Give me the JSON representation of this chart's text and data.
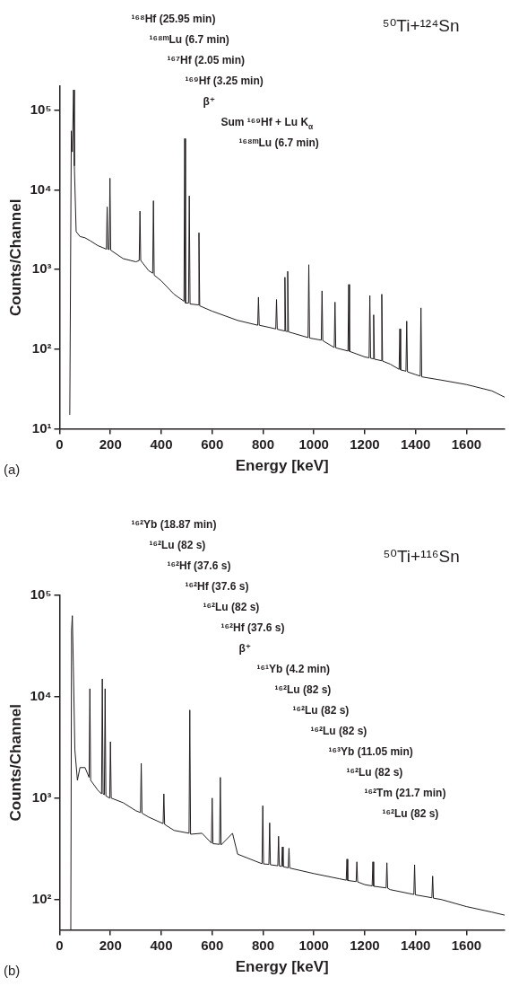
{
  "chart_data": [
    {
      "type": "line",
      "title": "⁵⁰Ti+¹²⁴Sn",
      "xlabel": "Energy [keV]",
      "ylabel": "Counts/Channel",
      "log": "y",
      "grid": false,
      "marker": "none",
      "color": "#231f20",
      "x": [
        40,
        46,
        50,
        55,
        58,
        65,
        80,
        100,
        120,
        150,
        184,
        187,
        190,
        195,
        198,
        201,
        250,
        300,
        313,
        316,
        319,
        350,
        366,
        369,
        372,
        400,
        450,
        489,
        492,
        495,
        507,
        510,
        513,
        545,
        548,
        551,
        600,
        700,
        779,
        782,
        785,
        850,
        853,
        856,
        883,
        886,
        889,
        894,
        897,
        900,
        977,
        980,
        983,
        1029,
        1032,
        1035,
        1080,
        1083,
        1086,
        1134,
        1137,
        1140,
        1200,
        1217,
        1220,
        1223,
        1232,
        1235,
        1238,
        1264,
        1267,
        1270,
        1300,
        1335,
        1338,
        1341,
        1362,
        1365,
        1368,
        1400,
        1418,
        1421,
        1424,
        1500,
        1600,
        1700,
        1750
      ],
      "values": [
        15,
        55000,
        30000,
        180000,
        20000,
        3000,
        2600,
        2500,
        2300,
        2000,
        1800,
        6100,
        1800,
        1780,
        14000,
        1750,
        1370,
        1250,
        1300,
        5400,
        1300,
        970,
        900,
        7300,
        850,
        720,
        490,
        400,
        44000,
        380,
        380,
        8400,
        370,
        360,
        2900,
        350,
        300,
        230,
        200,
        450,
        200,
        180,
        420,
        178,
        170,
        800,
        168,
        167,
        950,
        165,
        140,
        1150,
        138,
        130,
        540,
        128,
        105,
        390,
        104,
        95,
        650,
        94,
        80,
        78,
        470,
        77,
        76,
        270,
        75,
        72,
        490,
        71,
        65,
        56,
        180,
        55,
        53,
        225,
        52,
        48,
        46,
        330,
        45,
        41,
        36,
        30,
        25
      ],
      "xlim": [
        0,
        1750
      ],
      "xticks": [
        0,
        200,
        400,
        600,
        800,
        1000,
        1200,
        1400,
        1600
      ],
      "ylim": [
        10,
        200000
      ],
      "yticks": [
        {
          "value": 10,
          "label": "10¹"
        },
        {
          "value": 100,
          "label": "10²"
        },
        {
          "value": 1000,
          "label": "10³"
        },
        {
          "value": 10000,
          "label": "10⁴"
        },
        {
          "value": 100000,
          "label": "10⁵"
        }
      ],
      "annotations": [
        "¹⁶⁸Hf (25.95 min)",
        "¹⁶⁸ᵐLu (6.7 min)",
        "¹⁶⁷Hf (2.05 min)",
        "¹⁶⁹Hf (3.25 min)",
        "β⁺",
        "Sum ¹⁶⁹Hf + Lu K$_{α}$",
        "¹⁶⁸ᵐLu (6.7 min)",
        "(a)"
      ]
    },
    {
      "type": "line",
      "title": "⁵⁰Ti+¹¹⁶Sn",
      "xlabel": "Energy [keV]",
      "ylabel": "Counts/Channel",
      "log": "y",
      "grid": false,
      "marker": "none",
      "color": "#231f20",
      "x": [
        44,
        47,
        50,
        54,
        60,
        70,
        80,
        100,
        116,
        119,
        122,
        150,
        165,
        168,
        171,
        176,
        179,
        182,
        197,
        200,
        203,
        250,
        300,
        318,
        321,
        324,
        350,
        407,
        410,
        413,
        450,
        509,
        512,
        515,
        560,
        597,
        600,
        603,
        629,
        632,
        635,
        680,
        700,
        796,
        799,
        802,
        823,
        826,
        829,
        858,
        861,
        864,
        873,
        876,
        879,
        899,
        902,
        905,
        1000,
        1100,
        1127,
        1130,
        1133,
        1166,
        1169,
        1172,
        1200,
        1229,
        1232,
        1235,
        1284,
        1287,
        1290,
        1300,
        1393,
        1396,
        1399,
        1464,
        1467,
        1470,
        1500,
        1600,
        1700,
        1750
      ],
      "values": [
        50,
        45000,
        63000,
        20000,
        3000,
        1500,
        2000,
        2000,
        1600,
        12000,
        1500,
        1200,
        1100,
        15000,
        1100,
        1080,
        12000,
        1050,
        1000,
        3600,
        1000,
        900,
        750,
        720,
        2200,
        710,
        650,
        560,
        1100,
        550,
        480,
        450,
        7400,
        440,
        450,
        360,
        1000,
        355,
        350,
        1600,
        345,
        450,
        280,
        225,
        840,
        224,
        222,
        570,
        220,
        215,
        420,
        214,
        212,
        330,
        211,
        205,
        320,
        204,
        180,
        160,
        155,
        250,
        154,
        150,
        235,
        149,
        140,
        136,
        235,
        135,
        130,
        230,
        129,
        125,
        112,
        220,
        111,
        104,
        170,
        103,
        100,
        85,
        75,
        70
      ],
      "xlim": [
        0,
        1750
      ],
      "xticks": [
        0,
        200,
        400,
        600,
        800,
        1000,
        1200,
        1400,
        1600
      ],
      "ylim": [
        50,
        100000
      ],
      "yticks": [
        {
          "value": 100,
          "label": "10²"
        },
        {
          "value": 1000,
          "label": "10³"
        },
        {
          "value": 10000,
          "label": "10⁴"
        },
        {
          "value": 100000,
          "label": "10⁵"
        }
      ],
      "annotations": [
        "¹⁶²Yb (18.87 min)",
        "¹⁶²Lu (82 s)",
        "¹⁶²Hf (37.6 s)",
        "¹⁶²Hf (37.6 s)",
        "¹⁶²Lu (82 s)",
        "¹⁶²Hf (37.6 s)",
        "β⁺",
        "¹⁶¹Yb (4.2 min)",
        "¹⁶²Lu (82 s)",
        "¹⁶²Lu (82 s)",
        "¹⁶²Lu (82 s)",
        "¹⁶³Yb (11.05 min)",
        "¹⁶²Lu (82 s)",
        "¹⁶²Tm (21.7 min)",
        "¹⁶²Lu (82 s)",
        "(b)"
      ]
    }
  ]
}
